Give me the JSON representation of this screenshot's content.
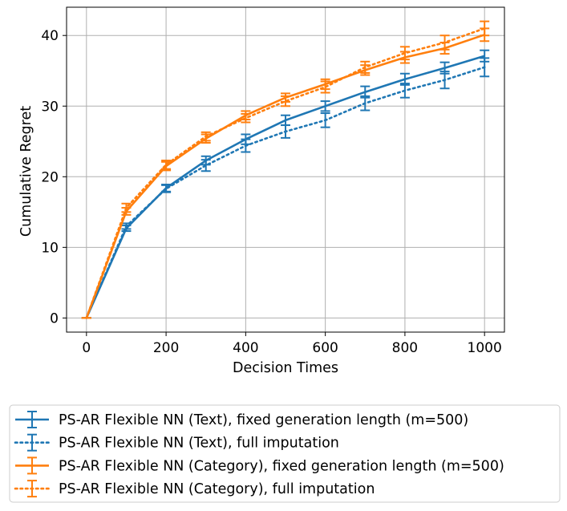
{
  "chart_data": {
    "type": "line",
    "title": "",
    "xlabel": "Decision Times",
    "ylabel": "Cumulative Regret",
    "xlim": [
      -50,
      1050
    ],
    "ylim": [
      -2,
      44
    ],
    "xticks": [
      0,
      200,
      400,
      600,
      800,
      1000
    ],
    "yticks": [
      0,
      10,
      20,
      30,
      40
    ],
    "xtick_labels": [
      "0",
      "200",
      "400",
      "600",
      "800",
      "1000"
    ],
    "ytick_labels": [
      "0",
      "10",
      "20",
      "30",
      "40"
    ],
    "grid": true,
    "legend_position": "below",
    "x": [
      0,
      100,
      200,
      300,
      400,
      500,
      600,
      700,
      800,
      900,
      1000
    ],
    "series": [
      {
        "name": "PS-AR Flexible NN (Text), fixed generation length (m=500)",
        "color": "#1f77b4",
        "style": "solid",
        "values": [
          0,
          12.7,
          18.4,
          22.3,
          25.3,
          28.0,
          30.0,
          32.0,
          33.8,
          35.4,
          37.1
        ],
        "errors": [
          0,
          0.4,
          0.5,
          0.6,
          0.7,
          0.7,
          0.7,
          0.8,
          0.8,
          0.8,
          0.8
        ]
      },
      {
        "name": "PS-AR Flexible NN (Text), full imputation",
        "color": "#1f77b4",
        "style": "dotted",
        "values": [
          0,
          13.0,
          18.3,
          21.6,
          24.4,
          26.4,
          28.0,
          30.4,
          32.2,
          33.7,
          35.5
        ],
        "errors": [
          0,
          0.4,
          0.5,
          0.8,
          0.9,
          0.9,
          1.0,
          1.0,
          1.0,
          1.2,
          1.3
        ]
      },
      {
        "name": "PS-AR Flexible NN (Category), fixed generation length (m=500)",
        "color": "#ff7f0e",
        "style": "solid",
        "values": [
          0,
          15.1,
          21.5,
          25.4,
          28.7,
          31.2,
          33.1,
          35.1,
          36.9,
          38.2,
          40.1
        ],
        "errors": [
          0,
          0.5,
          0.6,
          0.6,
          0.6,
          0.6,
          0.7,
          0.7,
          0.8,
          0.8,
          0.9
        ]
      },
      {
        "name": "PS-AR Flexible NN (Category), full imputation",
        "color": "#ff7f0e",
        "style": "dotted",
        "values": [
          0,
          15.6,
          21.7,
          25.7,
          28.3,
          30.7,
          32.7,
          35.5,
          37.5,
          39.0,
          41.0
        ],
        "errors": [
          0,
          0.6,
          0.6,
          0.6,
          0.6,
          0.7,
          0.8,
          0.8,
          0.9,
          1.0,
          1.0
        ]
      }
    ]
  }
}
